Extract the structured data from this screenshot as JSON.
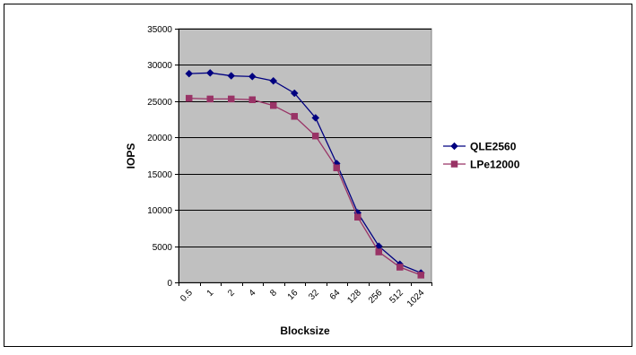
{
  "chart_data": {
    "type": "line",
    "categories": [
      "0.5",
      "1",
      "2",
      "4",
      "8",
      "16",
      "32",
      "64",
      "128",
      "256",
      "512",
      "1024"
    ],
    "series": [
      {
        "name": "QLE2560",
        "color": "#000080",
        "marker": "diamond",
        "values": [
          28800,
          28900,
          28500,
          28400,
          27800,
          26100,
          22700,
          16400,
          9600,
          5000,
          2500,
          1300
        ]
      },
      {
        "name": "LPe12000",
        "color": "#993366",
        "marker": "square",
        "values": [
          25400,
          25300,
          25300,
          25200,
          24400,
          22900,
          20200,
          15800,
          9000,
          4200,
          2100,
          1000
        ]
      }
    ],
    "xlabel": "Blocksize",
    "ylabel": "IOPS",
    "ylim": [
      0,
      35000
    ],
    "yticks": [
      0,
      5000,
      10000,
      15000,
      20000,
      25000,
      30000,
      35000
    ],
    "grid": true,
    "plot_background": "#c0c0c0",
    "legend_position": "right"
  }
}
